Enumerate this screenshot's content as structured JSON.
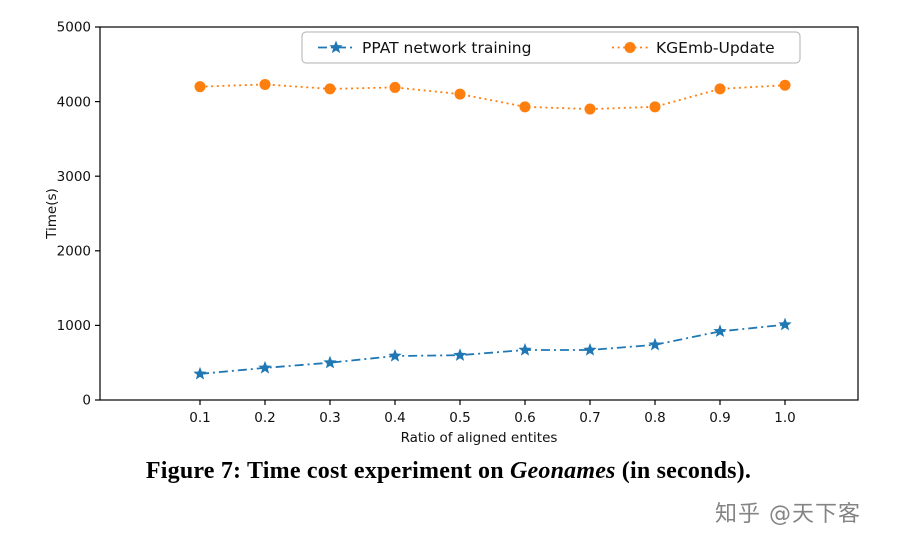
{
  "chart_data": {
    "type": "line",
    "x": [
      0.1,
      0.2,
      0.3,
      0.4,
      0.5,
      0.6,
      0.7,
      0.8,
      0.9,
      1.0
    ],
    "series": [
      {
        "name": "PPAT network training",
        "color": "#1f77b4",
        "marker": "star",
        "linestyle": "dashdot",
        "values": [
          350,
          430,
          500,
          590,
          600,
          670,
          670,
          740,
          920,
          1010
        ]
      },
      {
        "name": "KGEmb-Update",
        "color": "#ff7f0e",
        "marker": "circle",
        "linestyle": "dotted",
        "values": [
          4200,
          4230,
          4170,
          4190,
          4100,
          3930,
          3900,
          3930,
          4170,
          4220
        ]
      }
    ],
    "xlabel": "Ratio of aligned entites",
    "ylabel": "Time(s)",
    "ylim": [
      0,
      5000
    ],
    "yticks": [
      0,
      1000,
      2000,
      3000,
      4000,
      5000
    ],
    "grid": false,
    "legend_position": "upper center"
  },
  "caption": {
    "prefix": "Figure 7: Time cost experiment on ",
    "emphasis": "Geonames",
    "suffix": " (in seconds)."
  },
  "watermark": {
    "text": "知乎 @天下客"
  }
}
